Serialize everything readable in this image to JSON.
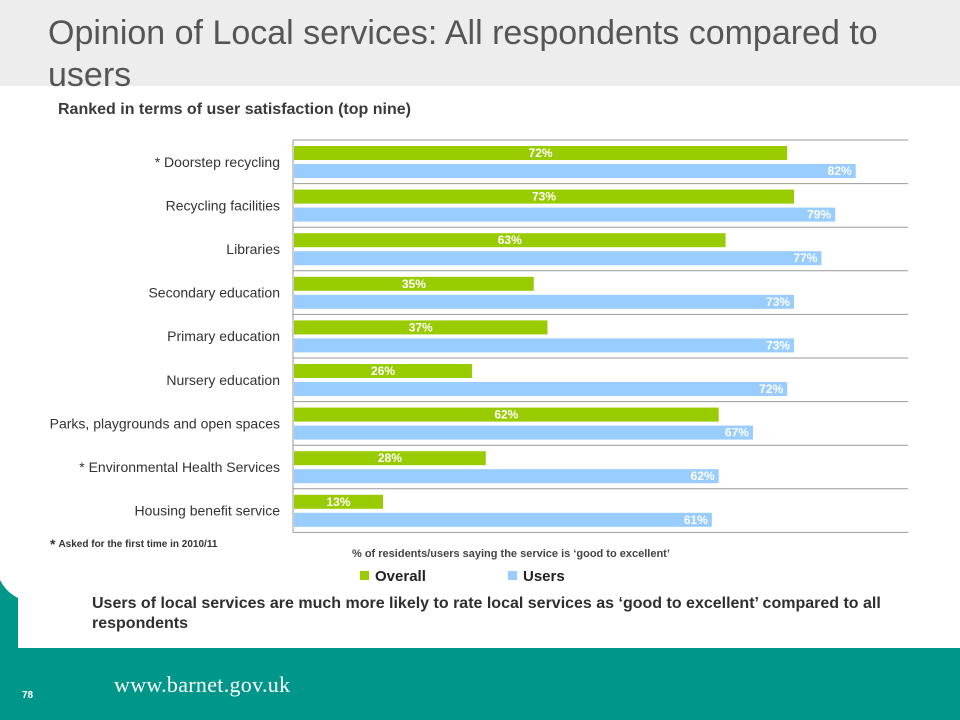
{
  "title": "Opinion of Local services: All respondents compared to users",
  "subtitle": "Ranked in terms of user satisfaction (top nine)",
  "footnote": "Asked for the first time in 2010/11",
  "footnote_star": "*",
  "caption": "Users of local services are  much more likely to rate local services as ‘good to excellent’ compared to all respondents",
  "page_number": "78",
  "url": "www.barnet.gov.uk",
  "colors": {
    "overall": "#99cc00",
    "users": "#99ccff",
    "teal": "#00968a",
    "title_band": "#ededed"
  },
  "chart_data": {
    "type": "bar",
    "orientation": "horizontal",
    "categories": [
      "* Doorstep recycling",
      "Recycling facilities",
      "Libraries",
      "Secondary education",
      "Primary education",
      "Nursery education",
      "Parks, playgrounds and open spaces",
      "* Environmental Health Services",
      "Housing benefit service"
    ],
    "series": [
      {
        "name": "Overall",
        "values": [
          72,
          73,
          63,
          35,
          37,
          26,
          62,
          28,
          13
        ],
        "labels": [
          "72%",
          "73%",
          "63%",
          "35%",
          "37%",
          "26%",
          "62%",
          "28%",
          "13%"
        ]
      },
      {
        "name": "Users",
        "values": [
          82,
          79,
          77,
          73,
          73,
          72,
          67,
          62,
          61
        ],
        "labels": [
          "82%",
          "79%",
          "77%",
          "73%",
          "73%",
          "72%",
          "67%",
          "62%",
          "61%"
        ]
      }
    ],
    "xlabel": "% of residents/users saying the service is ‘good to excellent’",
    "xlim": [
      0,
      100
    ],
    "legend_position": "bottom",
    "grid": "horizontal separators"
  }
}
